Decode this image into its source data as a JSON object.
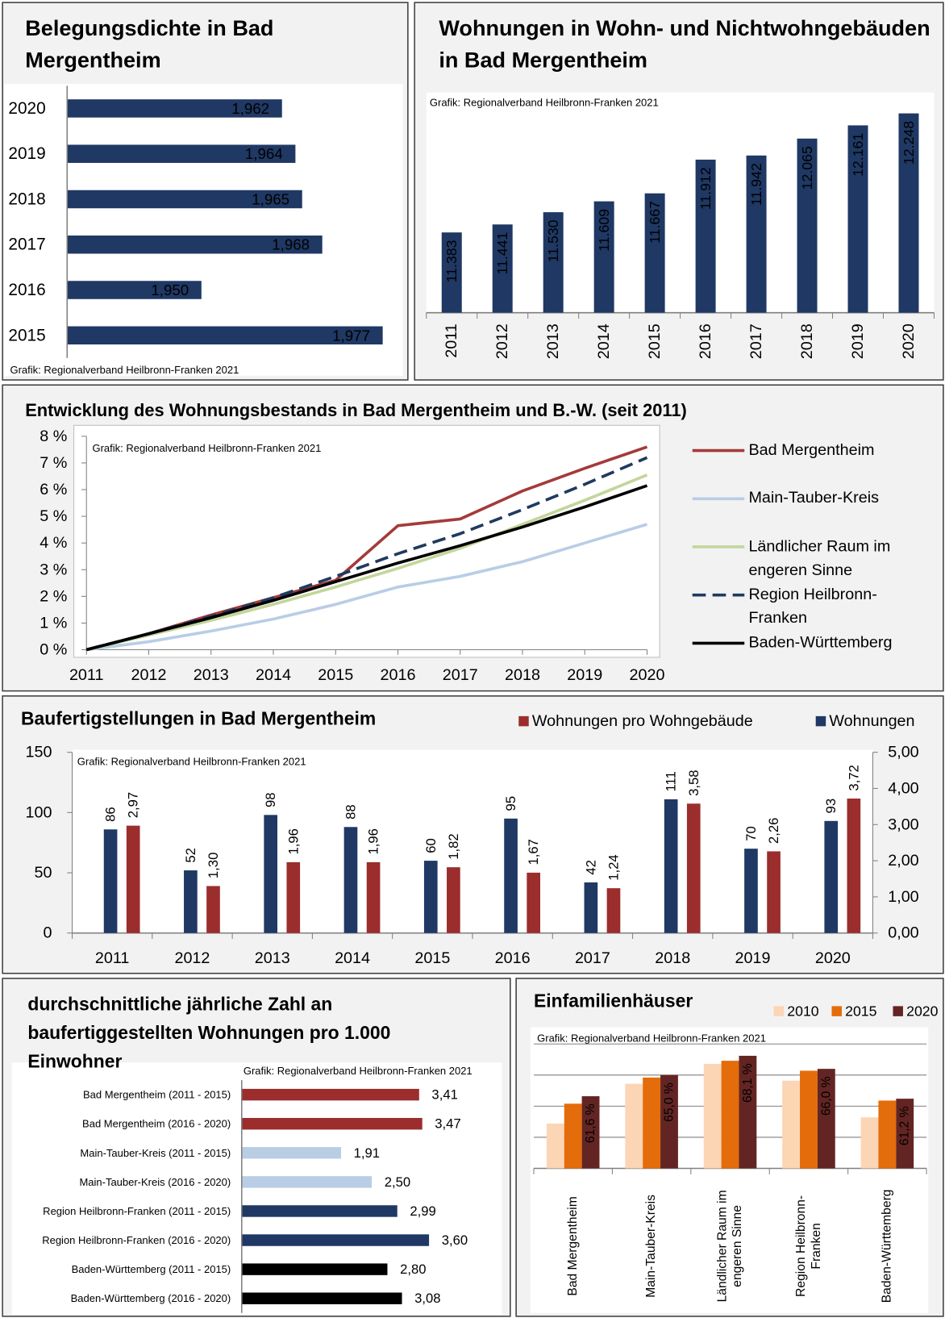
{
  "chart_data": [
    {
      "type": "hbar",
      "title": "Belegungsdichte in Bad Mergentheim",
      "source": "Grafik: Regionalverband Heilbronn-Franken 2021",
      "categories": [
        "2020",
        "2019",
        "2018",
        "2017",
        "2016",
        "2015"
      ],
      "values": [
        1.962,
        1.964,
        1.965,
        1.968,
        1.95,
        1.977
      ],
      "value_labels": [
        "1,962",
        "1,964",
        "1,965",
        "1,968",
        "1,950",
        "1,977"
      ],
      "color": "#1f3864",
      "xlim": [
        1.93,
        1.98
      ]
    },
    {
      "type": "bar",
      "title": "Wohnungen in Wohn- und Nichtwohngebäuden in Bad Mergentheim",
      "source": "Grafik: Regionalverband Heilbronn-Franken 2021",
      "categories": [
        "2011",
        "2012",
        "2013",
        "2014",
        "2015",
        "2016",
        "2017",
        "2018",
        "2019",
        "2020"
      ],
      "values": [
        11383,
        11441,
        11530,
        11609,
        11667,
        11912,
        11942,
        12065,
        12161,
        12248
      ],
      "value_labels": [
        "11.383",
        "11.441",
        "11.530",
        "11.609",
        "11.667",
        "11.912",
        "11.942",
        "12.065",
        "12.161",
        "12.248"
      ],
      "color": "#1f3864",
      "ylim": [
        10800,
        12400
      ]
    },
    {
      "type": "line",
      "title": "Entwicklung des Wohnungsbestands in Bad Mergentheim und B.-W. (seit 2011)",
      "source": "Grafik: Regionalverband Heilbronn-Franken 2021",
      "categories": [
        "2011",
        "2012",
        "2013",
        "2014",
        "2015",
        "2016",
        "2017",
        "2018",
        "2019",
        "2020"
      ],
      "series": [
        {
          "name": "Bad Mergentheim",
          "color": "#a33b3a",
          "values": [
            0,
            0.6,
            1.3,
            1.95,
            2.6,
            4.65,
            4.9,
            5.95,
            6.8,
            7.6
          ]
        },
        {
          "name": "Main-Tauber-Kreis",
          "color": "#b9cde5",
          "values": [
            0,
            0.3,
            0.7,
            1.15,
            1.7,
            2.35,
            2.75,
            3.3,
            4.0,
            4.7
          ]
        },
        {
          "name": "Ländlicher Raum im engeren Sinne",
          "color": "#c3d69b",
          "values": [
            0,
            0.55,
            1.1,
            1.7,
            2.35,
            3.05,
            3.8,
            4.7,
            5.6,
            6.55
          ]
        },
        {
          "name": "Region Heilbronn-Franken",
          "color": "#1f3a5f",
          "line_style": "dashed",
          "values": [
            0,
            0.6,
            1.25,
            1.95,
            2.75,
            3.6,
            4.35,
            5.25,
            6.2,
            7.2
          ]
        },
        {
          "name": "Baden-Württemberg",
          "color": "#000000",
          "values": [
            0,
            0.6,
            1.2,
            1.85,
            2.55,
            3.25,
            3.9,
            4.6,
            5.35,
            6.15
          ]
        }
      ],
      "ylim": [
        0,
        8
      ],
      "yticks": [
        {
          "value": 0,
          "label": "0 %"
        },
        {
          "value": 1,
          "label": "1 %"
        },
        {
          "value": 2,
          "label": "2 %"
        },
        {
          "value": 3,
          "label": "3 %"
        },
        {
          "value": 4,
          "label": "4 %"
        },
        {
          "value": 5,
          "label": "5 %"
        },
        {
          "value": 6,
          "label": "6 %"
        },
        {
          "value": 7,
          "label": "7 %"
        },
        {
          "value": 8,
          "label": "8 %"
        }
      ],
      "legend": "right"
    },
    {
      "type": "bar",
      "title": "Baufertigstellungen in Bad Mergentheim",
      "source": "Grafik: Regionalverband Heilbronn-Franken 2021",
      "categories": [
        "2011",
        "2012",
        "2013",
        "2014",
        "2015",
        "2016",
        "2017",
        "2018",
        "2019",
        "2020"
      ],
      "series": [
        {
          "name": "Wohnungen pro Wohngebäude",
          "color": "#9b2d2d",
          "axis": "y2",
          "values": [
            2.97,
            1.3,
            1.96,
            1.96,
            1.82,
            1.67,
            1.24,
            3.58,
            2.26,
            3.72
          ],
          "value_labels": [
            "2,97",
            "1,30",
            "1,96",
            "1,96",
            "1,82",
            "1,67",
            "1,24",
            "3,58",
            "2,26",
            "3,72"
          ]
        },
        {
          "name": "Wohnungen",
          "color": "#1f3864",
          "values": [
            86,
            52,
            98,
            88,
            60,
            95,
            42,
            111,
            70,
            93
          ]
        }
      ],
      "ylim": [
        0,
        150
      ],
      "yticks": [
        0,
        50,
        100,
        150
      ],
      "y2lim": [
        0,
        5
      ],
      "y2ticks": [
        {
          "value": 0,
          "label": "0,00"
        },
        {
          "value": 1,
          "label": "1,00"
        },
        {
          "value": 2,
          "label": "2,00"
        },
        {
          "value": 3,
          "label": "3,00"
        },
        {
          "value": 4,
          "label": "4,00"
        },
        {
          "value": 5,
          "label": "5,00"
        }
      ],
      "legend": "top-right"
    },
    {
      "type": "hbar",
      "title": "durchschnittliche jährliche Zahl an baufertiggestellten Wohnungen pro 1.000 Einwohner",
      "source": "Grafik: Regionalverband Heilbronn-Franken 2021",
      "categories": [
        "Bad Mergentheim (2011 - 2015)",
        "Bad Mergentheim (2016 - 2020)",
        "Main-Tauber-Kreis (2011 - 2015)",
        "Main-Tauber-Kreis (2016 - 2020)",
        "Region Heilbronn-Franken (2011 - 2015)",
        "Region Heilbronn-Franken (2016 - 2020)",
        "Baden-Württemberg (2011 - 2015)",
        "Baden-Württemberg (2016 - 2020)"
      ],
      "values": [
        3.41,
        3.47,
        1.91,
        2.5,
        2.99,
        3.6,
        2.8,
        3.08
      ],
      "value_labels": [
        "3,41",
        "3,47",
        "1,91",
        "2,50",
        "2,99",
        "3,60",
        "2,80",
        "3,08"
      ],
      "colors": [
        "#9b2d2d",
        "#9b2d2d",
        "#b9cde5",
        "#b9cde5",
        "#1f3864",
        "#1f3864",
        "#000000",
        "#000000"
      ],
      "xlim": [
        0,
        5
      ]
    },
    {
      "type": "bar",
      "title": "Einfamilienhäuser",
      "source": "Grafik: Regionalverband Heilbronn-Franken 2021",
      "categories": [
        "Bad Mergentheim",
        "Main-Tauber-Kreis",
        "Ländlicher Raum im engeren Sinne",
        "Region Heilbronn-Franken",
        "Baden-Württemberg"
      ],
      "series": [
        {
          "name": "2010",
          "color": "#fcd5b5",
          "values": [
            57.2,
            63.6,
            66.8,
            64.1,
            58.2
          ]
        },
        {
          "name": "2015",
          "color": "#e46c0a",
          "values": [
            60.4,
            64.6,
            67.3,
            65.7,
            60.9
          ]
        },
        {
          "name": "2020",
          "color": "#632523",
          "values": [
            61.6,
            65.0,
            68.1,
            66.0,
            61.2
          ],
          "value_labels": [
            "61,6 %",
            "65,0 %",
            "68,1 %",
            "66,0 %",
            "61,2 %"
          ]
        }
      ],
      "ylim": [
        50,
        70
      ],
      "yticks": [
        50,
        55,
        60,
        65,
        70
      ],
      "grid": true,
      "legend": "top-right"
    }
  ]
}
